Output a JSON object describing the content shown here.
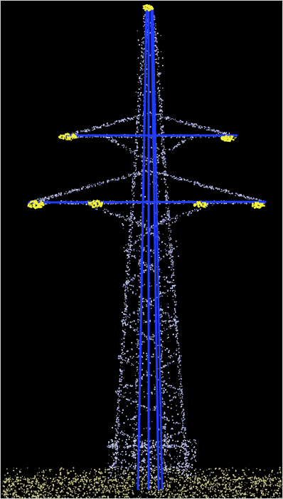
{
  "image": {
    "subject": "pylon",
    "colors": {
      "background": "#000000",
      "frame": "#cfcfcf",
      "points_lattice": "#c9cdf2",
      "points_lattice_dim": "#8c93d8",
      "points_ground": "#c8c68a",
      "insulator": "#f2f23a",
      "centerline": "#1f3cff"
    }
  }
}
